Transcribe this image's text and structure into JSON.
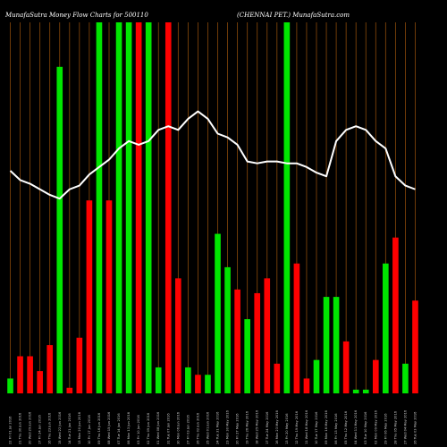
{
  "chart_data": {
    "type": "bar",
    "title_left": "MunafaSutra  Money Flow  Charts for 500110",
    "title_right": "(CHENNAI PET.)  MunafaSutra.com",
    "colors": {
      "background": "#000000",
      "grid": "#8b4a0a",
      "up_bar": "#00e600",
      "down_bar": "#ff0000",
      "line": "#ffffff"
    },
    "categories": [
      "22 Fri 01 Jul 2016",
      "21 Thu 30 Jun 2016",
      "20 Wed 29 Jun 2016",
      "17 Fri 24 Jun 2016",
      "16 Thu 23 Jun 2016",
      "15 Wed 22 Jun 2016",
      "14 Tue 21 Jun 2016",
      "13 Mon 20 Jun 2016",
      "10 Fri 17 Jun 2016",
      "09 Thu 16 Jun 2016",
      "08 Wed 15 Jun 2016",
      "07 Tue 14 Jun 2016",
      "06 Mon 13 Jun 2016",
      "03 Fri 10 Jun 2016",
      "02 Thu 09 Jun 2016",
      "01 Wed 08 Jun 2016",
      "31 Tue 07 Jun 2016",
      "30 Mon 06 Jun 2016",
      "27 Fri 03 Jun 2016",
      "26 Thu 02 Jun 2016",
      "25 Wed 01 Jun 2016",
      "24 Tue 31 May 2016",
      "23 Mon 30 May 2016",
      "20 Fri 27 May 2016",
      "19 Thu 26 May 2016",
      "18 Wed 25 May 2016",
      "17 Tue 24 May 2016",
      "16 Mon 23 May 2016",
      "13 Fri 20 May 2016",
      "12 Thu 19 May 2016",
      "11 Wed 18 May 2016",
      "10 Tue 17 May 2016",
      "09 Mon 16 May 2016",
      "06 Fri 13 May 2016",
      "05 Thu 12 May 2016",
      "04 Wed 11 May 2016",
      "03 Tue 10 May 2016",
      "02 Mon 09 May 2016",
      "29 Fri 06 May 2016",
      "28 Thu 05 May 2016",
      "27 Wed 04 May 2016",
      "26 Tue 03 May 2016"
    ],
    "bar_values": [
      0.04,
      0.1,
      0.1,
      0.06,
      0.13,
      0.88,
      0.015,
      0.15,
      0.52,
      1.0,
      0.52,
      1.0,
      1.0,
      1.0,
      1.0,
      0.07,
      1.0,
      0.31,
      0.07,
      0.05,
      0.05,
      0.43,
      0.34,
      0.28,
      0.2,
      0.27,
      0.31,
      0.08,
      1.0,
      0.35,
      0.04,
      0.09,
      0.26,
      0.26,
      0.14,
      0.01,
      0.01,
      0.09,
      0.35,
      0.42,
      0.08,
      0.25
    ],
    "bar_colors": [
      "up",
      "down",
      "down",
      "down",
      "down",
      "up",
      "down",
      "down",
      "down",
      "up",
      "down",
      "up",
      "up",
      "down",
      "up",
      "up",
      "down",
      "down",
      "up",
      "down",
      "up",
      "up",
      "up",
      "down",
      "up",
      "down",
      "down",
      "down",
      "up",
      "down",
      "down",
      "up",
      "up",
      "up",
      "down",
      "up",
      "up",
      "down",
      "up",
      "down",
      "up",
      "down"
    ],
    "line_values": [
      0.6,
      0.575,
      0.565,
      0.55,
      0.535,
      0.525,
      0.55,
      0.56,
      0.59,
      0.61,
      0.63,
      0.66,
      0.68,
      0.67,
      0.68,
      0.71,
      0.72,
      0.71,
      0.74,
      0.76,
      0.74,
      0.7,
      0.69,
      0.67,
      0.625,
      0.62,
      0.625,
      0.625,
      0.62,
      0.62,
      0.61,
      0.595,
      0.585,
      0.68,
      0.71,
      0.72,
      0.71,
      0.68,
      0.66,
      0.585,
      0.56,
      0.55
    ]
  }
}
